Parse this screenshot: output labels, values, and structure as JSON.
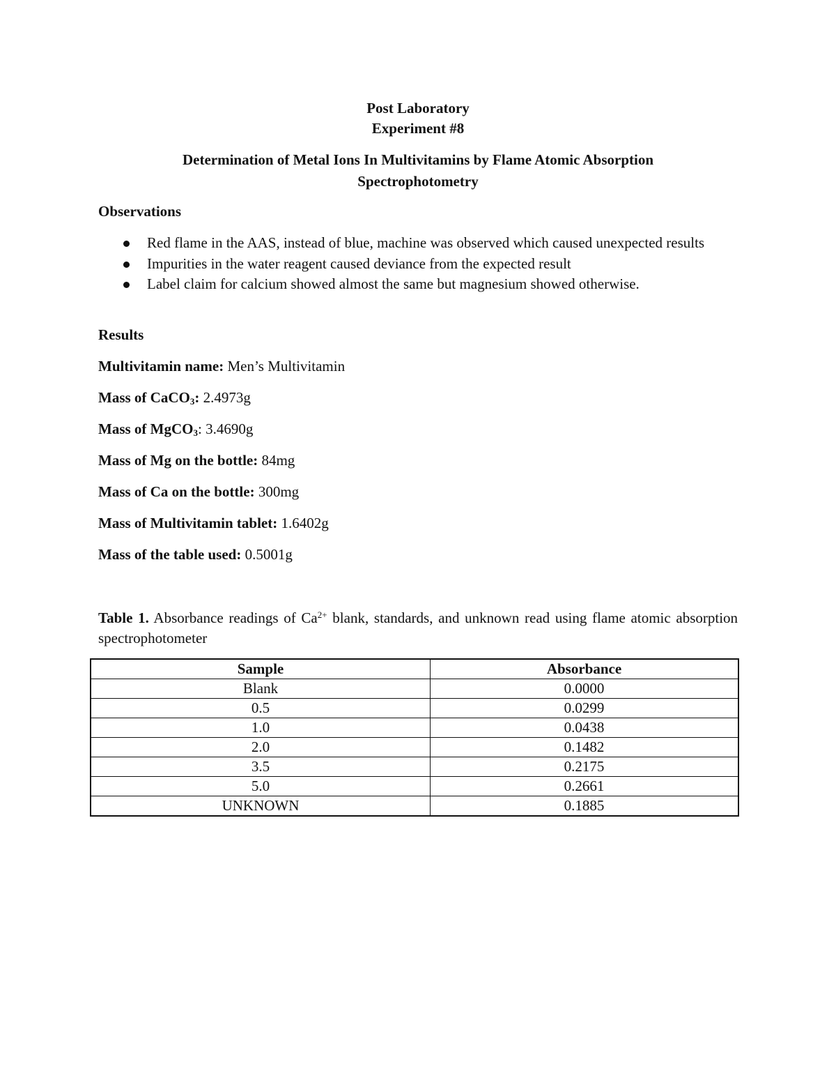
{
  "header": {
    "line1": "Post Laboratory",
    "line2": "Experiment #8",
    "title_line1": "Determination of Metal Ions In Multivitamins by Flame Atomic Absorption",
    "title_line2": "Spectrophotometry"
  },
  "observations": {
    "heading": "Observations",
    "items": [
      {
        "text": "Red flame in the AAS, instead of blue, machine was observed which caused unexpected results"
      },
      {
        "text": "Impurities in the water reagent caused deviance from the expected result"
      },
      {
        "text": "Label claim for calcium showed almost the same but magnesium showed otherwise."
      }
    ]
  },
  "results": {
    "heading": "Results",
    "multivitamin_label": "Multivitamin name:",
    "multivitamin_value": "Men’s Multivitamin",
    "caco3_label_pre": "Mass of CaCO",
    "caco3_sub": "3",
    "caco3_label_post": ":",
    "caco3_value": "2.4973g",
    "mgco3_label_pre": "Mass of MgCO",
    "mgco3_sub": "3",
    "mgco3_label_post": ":",
    "mgco3_value": "3.4690g",
    "mg_bottle_label": "Mass of Mg on the bottle:",
    "mg_bottle_value": "84mg",
    "ca_bottle_label": "Mass of Ca on the bottle:",
    "ca_bottle_value": "300mg",
    "tablet_label": "Mass of Multivitamin tablet:",
    "tablet_value": "1.6402g",
    "table_used_label": "Mass of the table used:",
    "table_used_value": "0.5001g"
  },
  "table1": {
    "caption_label": "Table 1.",
    "caption_pre": "Absorbance readings of Ca",
    "caption_sup": "2+",
    "caption_post": "blank, standards, and unknown  read using flame atomic absorption spectrophotometer",
    "columns": [
      "Sample",
      "Absorbance"
    ],
    "rows": [
      [
        "Blank",
        "0.0000"
      ],
      [
        "0.5",
        "0.0299"
      ],
      [
        "1.0",
        "0.0438"
      ],
      [
        "2.0",
        "0.1482"
      ],
      [
        "3.5",
        "0.2175"
      ],
      [
        "5.0",
        "0.2661"
      ],
      [
        "UNKNOWN",
        "0.1885"
      ]
    ]
  }
}
